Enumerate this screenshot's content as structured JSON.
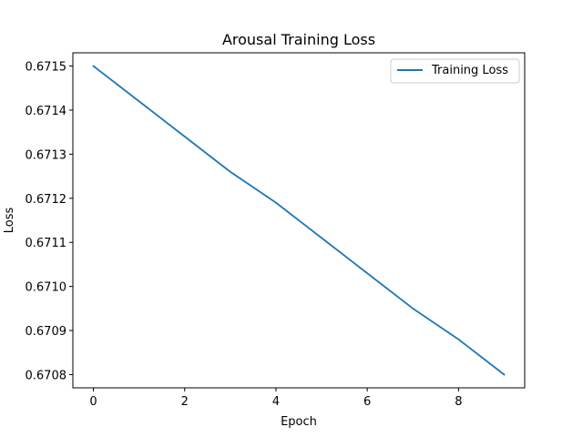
{
  "chart_data": {
    "type": "line",
    "title": "Arousal Training Loss",
    "xlabel": "Epoch",
    "ylabel": "Loss",
    "x": [
      0,
      1,
      2,
      3,
      4,
      5,
      6,
      7,
      8,
      9
    ],
    "series": [
      {
        "name": "Training Loss",
        "values": [
          0.6715,
          0.67142,
          0.67134,
          0.67126,
          0.67119,
          0.67111,
          0.67103,
          0.67095,
          0.67088,
          0.6708
        ],
        "color": "#1f77b4"
      }
    ],
    "xlim": [
      -0.45,
      9.45
    ],
    "ylim": [
      0.67077,
      0.67153
    ],
    "xticks": [
      0,
      2,
      4,
      6,
      8
    ],
    "xtick_labels": [
      "0",
      "2",
      "4",
      "6",
      "8"
    ],
    "yticks": [
      0.6708,
      0.6709,
      0.671,
      0.6711,
      0.6712,
      0.6713,
      0.6714,
      0.6715
    ],
    "ytick_labels": [
      "0.6708",
      "0.6709",
      "0.6710",
      "0.6711",
      "0.6712",
      "0.6713",
      "0.6714",
      "0.6715"
    ],
    "grid": false,
    "legend": "top-right"
  }
}
